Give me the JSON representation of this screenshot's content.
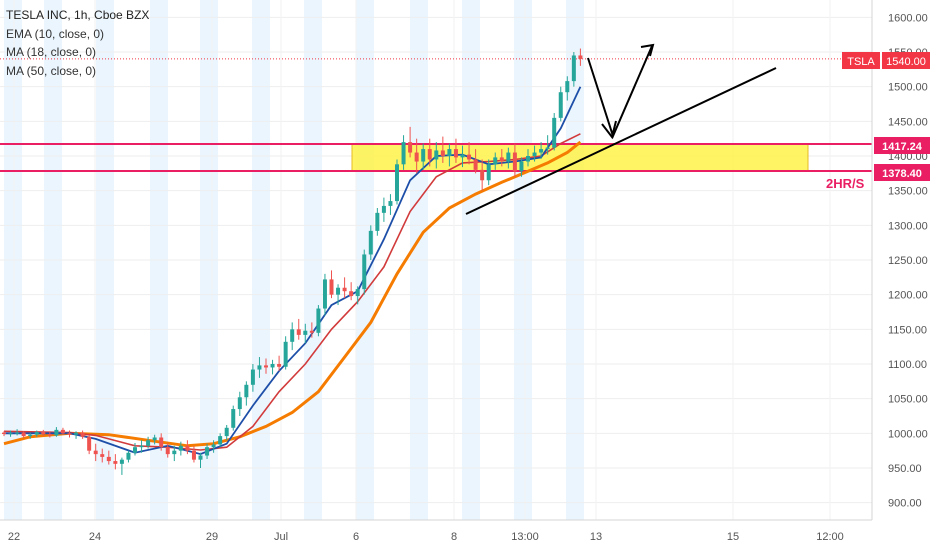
{
  "legend": {
    "title": "TESLA INC, 1h, Cboe BZX",
    "ema": "EMA (10, close, 0)",
    "ma18": "MA (18, close, 0)",
    "ma50": "MA (50, close, 0)"
  },
  "price_axis": {
    "ticks": [
      "1600.00",
      "1550.00",
      "1500.00",
      "1450.00",
      "1400.00",
      "1350.00",
      "1300.00",
      "1250.00",
      "1200.00",
      "1150.00",
      "1100.00",
      "1050.00",
      "1000.00",
      "950.00",
      "900.00"
    ]
  },
  "time_axis": {
    "ticks": [
      "22",
      "24",
      "29",
      "Jul",
      "6",
      "8",
      "13:00",
      "13",
      "15",
      "12:00"
    ]
  },
  "badges": {
    "symbol": "TSLA",
    "last_price": "1540.00",
    "level_high": "1417.24",
    "level_low": "1378.40"
  },
  "zone_label": "2HR/S",
  "colors": {
    "up": "#26a69a",
    "down": "#ef5350",
    "ema10": "#1e4fa8",
    "ma18": "#d23b3b",
    "ma50": "#f57c00",
    "zone": "#fff34a",
    "level_line": "#e91e63",
    "badge": "#f23645",
    "session_band": "#e3f2fd"
  },
  "chart_data": {
    "type": "candlestick",
    "title": "TESLA INC, 1h, Cboe BZX",
    "ylim": [
      875,
      1625
    ],
    "support_zone": [
      1378.4,
      1417.24
    ],
    "last_price": 1540.0,
    "candles": [
      [
        1001,
        1003,
        996,
        999
      ],
      [
        999,
        1004,
        995,
        1000
      ],
      [
        1000,
        1006,
        997,
        1001
      ],
      [
        1001,
        1003,
        993,
        996
      ],
      [
        996,
        1001,
        992,
        998
      ],
      [
        998,
        1004,
        995,
        1002
      ],
      [
        1002,
        1005,
        996,
        999
      ],
      [
        999,
        1003,
        994,
        997
      ],
      [
        997,
        1009,
        995,
        1005
      ],
      [
        1005,
        1008,
        998,
        1000
      ],
      [
        1000,
        1004,
        994,
        998
      ],
      [
        998,
        1003,
        992,
        1001
      ],
      [
        1001,
        1004,
        992,
        995
      ],
      [
        995,
        998,
        970,
        975
      ],
      [
        975,
        985,
        960,
        970
      ],
      [
        970,
        978,
        958,
        966
      ],
      [
        966,
        975,
        955,
        960
      ],
      [
        960,
        970,
        948,
        956
      ],
      [
        956,
        965,
        940,
        962
      ],
      [
        962,
        975,
        958,
        972
      ],
      [
        972,
        986,
        968,
        980
      ],
      [
        980,
        990,
        972,
        982
      ],
      [
        982,
        995,
        978,
        990
      ],
      [
        990,
        998,
        984,
        994
      ],
      [
        994,
        1000,
        975,
        980
      ],
      [
        980,
        986,
        965,
        970
      ],
      [
        970,
        982,
        960,
        975
      ],
      [
        975,
        988,
        968,
        982
      ],
      [
        982,
        990,
        970,
        975
      ],
      [
        975,
        982,
        958,
        962
      ],
      [
        962,
        972,
        950,
        968
      ],
      [
        968,
        985,
        963,
        980
      ],
      [
        980,
        990,
        972,
        984
      ],
      [
        984,
        1000,
        980,
        996
      ],
      [
        996,
        1012,
        990,
        1008
      ],
      [
        1008,
        1040,
        1004,
        1035
      ],
      [
        1035,
        1060,
        1025,
        1052
      ],
      [
        1052,
        1075,
        1040,
        1070
      ],
      [
        1070,
        1100,
        1060,
        1092
      ],
      [
        1092,
        1110,
        1080,
        1098
      ],
      [
        1098,
        1108,
        1086,
        1095
      ],
      [
        1095,
        1106,
        1085,
        1100
      ],
      [
        1100,
        1112,
        1090,
        1096
      ],
      [
        1096,
        1140,
        1092,
        1132
      ],
      [
        1132,
        1160,
        1120,
        1150
      ],
      [
        1150,
        1165,
        1135,
        1142
      ],
      [
        1142,
        1158,
        1130,
        1148
      ],
      [
        1148,
        1160,
        1138,
        1145
      ],
      [
        1145,
        1185,
        1140,
        1180
      ],
      [
        1180,
        1230,
        1170,
        1222
      ],
      [
        1222,
        1235,
        1195,
        1200
      ],
      [
        1200,
        1215,
        1185,
        1210
      ],
      [
        1210,
        1225,
        1195,
        1205
      ],
      [
        1205,
        1218,
        1192,
        1198
      ],
      [
        1198,
        1212,
        1186,
        1208
      ],
      [
        1208,
        1265,
        1200,
        1258
      ],
      [
        1258,
        1300,
        1250,
        1292
      ],
      [
        1292,
        1325,
        1285,
        1318
      ],
      [
        1318,
        1340,
        1305,
        1328
      ],
      [
        1328,
        1345,
        1315,
        1335
      ],
      [
        1335,
        1395,
        1330,
        1388
      ],
      [
        1388,
        1430,
        1380,
        1420
      ],
      [
        1420,
        1442,
        1398,
        1405
      ],
      [
        1405,
        1425,
        1375,
        1392
      ],
      [
        1392,
        1418,
        1380,
        1410
      ],
      [
        1410,
        1425,
        1385,
        1395
      ],
      [
        1395,
        1420,
        1382,
        1408
      ],
      [
        1408,
        1428,
        1390,
        1400
      ],
      [
        1400,
        1418,
        1385,
        1410
      ],
      [
        1410,
        1425,
        1390,
        1398
      ],
      [
        1398,
        1415,
        1384,
        1402
      ],
      [
        1402,
        1420,
        1388,
        1395
      ],
      [
        1395,
        1410,
        1375,
        1380
      ],
      [
        1380,
        1395,
        1350,
        1365
      ],
      [
        1365,
        1395,
        1358,
        1388
      ],
      [
        1388,
        1405,
        1380,
        1398
      ],
      [
        1398,
        1410,
        1385,
        1392
      ],
      [
        1392,
        1412,
        1382,
        1405
      ],
      [
        1405,
        1418,
        1370,
        1378
      ],
      [
        1378,
        1398,
        1370,
        1392
      ],
      [
        1392,
        1410,
        1385,
        1400
      ],
      [
        1400,
        1415,
        1392,
        1405
      ],
      [
        1405,
        1420,
        1396,
        1410
      ],
      [
        1410,
        1430,
        1402,
        1412
      ],
      [
        1412,
        1462,
        1408,
        1455
      ],
      [
        1455,
        1500,
        1450,
        1492
      ],
      [
        1492,
        1515,
        1480,
        1508
      ],
      [
        1508,
        1550,
        1500,
        1545
      ],
      [
        1545,
        1555,
        1530,
        1540
      ]
    ],
    "ema10": [
      [
        0,
        1000
      ],
      [
        5,
        1000
      ],
      [
        10,
        1000
      ],
      [
        14,
        992
      ],
      [
        20,
        972
      ],
      [
        25,
        982
      ],
      [
        30,
        970
      ],
      [
        34,
        985
      ],
      [
        38,
        1040
      ],
      [
        42,
        1090
      ],
      [
        46,
        1130
      ],
      [
        50,
        1185
      ],
      [
        54,
        1205
      ],
      [
        58,
        1280
      ],
      [
        62,
        1365
      ],
      [
        66,
        1400
      ],
      [
        70,
        1402
      ],
      [
        74,
        1388
      ],
      [
        78,
        1392
      ],
      [
        82,
        1398
      ],
      [
        85,
        1440
      ],
      [
        88,
        1500
      ]
    ],
    "ma18": [
      [
        0,
        1003
      ],
      [
        5,
        1002
      ],
      [
        10,
        1001
      ],
      [
        14,
        997
      ],
      [
        20,
        982
      ],
      [
        25,
        980
      ],
      [
        30,
        976
      ],
      [
        34,
        980
      ],
      [
        38,
        1010
      ],
      [
        42,
        1060
      ],
      [
        46,
        1100
      ],
      [
        50,
        1150
      ],
      [
        54,
        1190
      ],
      [
        58,
        1240
      ],
      [
        62,
        1320
      ],
      [
        66,
        1370
      ],
      [
        70,
        1390
      ],
      [
        74,
        1392
      ],
      [
        78,
        1395
      ],
      [
        82,
        1400
      ],
      [
        85,
        1418
      ],
      [
        88,
        1432
      ]
    ],
    "ma50": [
      [
        0,
        985
      ],
      [
        4,
        995
      ],
      [
        10,
        1000
      ],
      [
        16,
        998
      ],
      [
        22,
        990
      ],
      [
        28,
        982
      ],
      [
        32,
        985
      ],
      [
        36,
        995
      ],
      [
        40,
        1010
      ],
      [
        44,
        1030
      ],
      [
        48,
        1060
      ],
      [
        52,
        1110
      ],
      [
        56,
        1160
      ],
      [
        60,
        1230
      ],
      [
        64,
        1290
      ],
      [
        68,
        1325
      ],
      [
        72,
        1345
      ],
      [
        76,
        1362
      ],
      [
        80,
        1378
      ],
      [
        83,
        1390
      ],
      [
        86,
        1405
      ],
      [
        88,
        1420
      ]
    ]
  }
}
